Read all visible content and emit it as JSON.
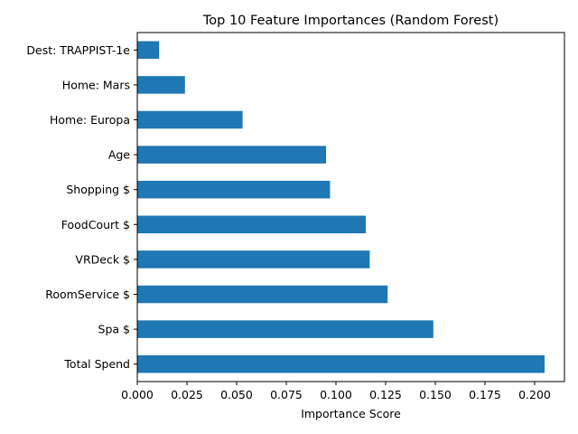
{
  "chart_data": {
    "type": "bar",
    "orientation": "horizontal",
    "title": "Top 10 Feature Importances (Random Forest)",
    "xlabel": "Importance Score",
    "ylabel": "",
    "categories": [
      "Total Spend",
      "Spa $",
      "RoomService $",
      "VRDeck $",
      "FoodCourt $",
      "Shopping $",
      "Age",
      "Home: Europa",
      "Home: Mars",
      "Dest: TRAPPIST-1e"
    ],
    "values": [
      0.205,
      0.149,
      0.126,
      0.117,
      0.115,
      0.097,
      0.095,
      0.053,
      0.024,
      0.011
    ],
    "xlim": [
      0,
      0.215
    ],
    "xticks": [
      "0.000",
      "0.025",
      "0.050",
      "0.075",
      "0.100",
      "0.125",
      "0.150",
      "0.175",
      "0.200"
    ],
    "bar_color": "#1f77b4",
    "grid": false,
    "legend": "none"
  }
}
